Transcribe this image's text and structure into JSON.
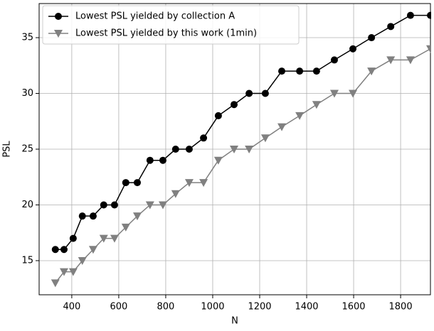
{
  "chart_data": {
    "type": "line",
    "x_label": "N",
    "y_label": "PSL",
    "x": [
      330,
      367,
      406,
      445,
      491,
      536,
      582,
      630,
      679,
      733,
      788,
      842,
      900,
      961,
      1024,
      1091,
      1155,
      1224,
      1294,
      1370,
      1442,
      1518,
      1597,
      1676,
      1758,
      1842,
      1927
    ],
    "series": [
      {
        "name": "Lowest PSL yielded by collection A",
        "color": "#000000",
        "marker": "circle",
        "values": [
          16,
          16,
          17,
          19,
          19,
          20,
          20,
          22,
          22,
          24,
          24,
          25,
          25,
          26,
          28,
          29,
          30,
          30,
          32,
          32,
          32,
          33,
          34,
          35,
          36,
          37,
          37
        ]
      },
      {
        "name": "Lowest PSL yielded by this work (1min)",
        "color": "#808080",
        "marker": "triangle-down",
        "values": [
          13,
          14,
          14,
          15,
          16,
          17,
          17,
          18,
          19,
          20,
          20,
          21,
          22,
          22,
          24,
          25,
          25,
          26,
          27,
          28,
          29,
          30,
          30,
          32,
          33,
          33,
          34
        ]
      }
    ],
    "xlim": [
      261,
      1927
    ],
    "ylim": [
      11.94,
      38.06
    ],
    "xticks": [
      400,
      600,
      800,
      1000,
      1200,
      1400,
      1600,
      1800
    ],
    "yticks": [
      15,
      20,
      25,
      30,
      35
    ],
    "grid": true,
    "legend": "upper-left"
  }
}
